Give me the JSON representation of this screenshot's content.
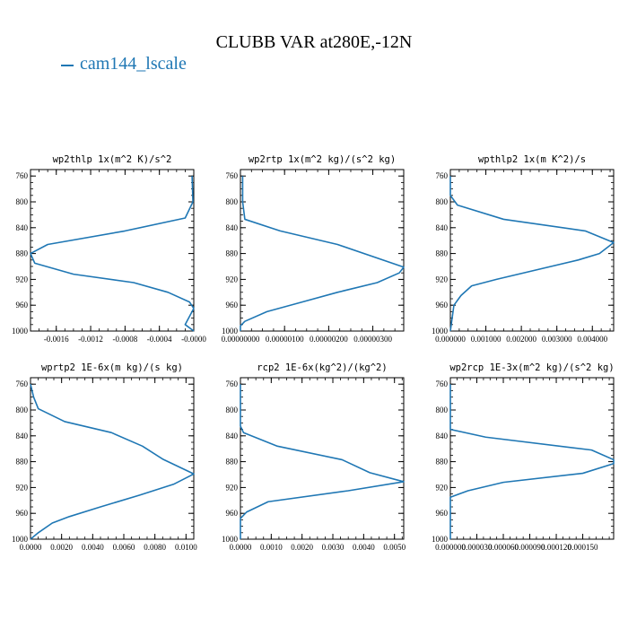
{
  "figure": {
    "title": "CLUBB VAR at280E,-12N",
    "legend": {
      "label": "cam144_lscale",
      "color": "#1f77b4"
    }
  },
  "chart_data": [
    {
      "type": "line",
      "title": "wp2thlp  1x(m^2 K)/s^2",
      "series_color": "#1f77b4",
      "xlim": [
        -0.0019,
        0.0
      ],
      "ylim": [
        1000,
        750
      ],
      "yticks": [
        760,
        800,
        840,
        880,
        920,
        960,
        1000
      ],
      "xticks": [
        -0.0016,
        -0.0012,
        -0.0008,
        -0.0004,
        -0.0
      ],
      "xtick_labels": [
        "-0.0016",
        "-0.0012",
        "-0.0008",
        "-0.0004",
        "-0.0000"
      ],
      "points": [
        [
          -2e-05,
          760
        ],
        [
          -1e-05,
          800
        ],
        [
          -0.0001,
          825
        ],
        [
          -0.0008,
          845
        ],
        [
          -0.0017,
          866
        ],
        [
          -0.0019,
          880
        ],
        [
          -0.00185,
          895
        ],
        [
          -0.0014,
          912
        ],
        [
          -0.0007,
          925
        ],
        [
          -0.0003,
          940
        ],
        [
          -5e-05,
          955
        ],
        [
          0.0,
          965
        ],
        [
          -0.0001,
          990
        ],
        [
          0.0,
          1000
        ]
      ]
    },
    {
      "type": "line",
      "title": "wp2rtp  1x(m^2 kg)/(s^2 kg)",
      "series_color": "#1f77b4",
      "xlim": [
        0.0,
        3.7e-06
      ],
      "ylim": [
        1000,
        750
      ],
      "yticks": [
        760,
        800,
        840,
        880,
        920,
        960,
        1000
      ],
      "xticks": [
        0.0,
        1e-06,
        2e-06,
        3e-06
      ],
      "xtick_labels": [
        "0.00000000",
        "0.00000100",
        "0.00000200",
        "0.00000300"
      ],
      "points": [
        [
          5e-08,
          760
        ],
        [
          5e-08,
          800
        ],
        [
          1e-07,
          827
        ],
        [
          9e-07,
          845
        ],
        [
          2.2e-06,
          866
        ],
        [
          3.7e-06,
          901
        ],
        [
          3.6e-06,
          910
        ],
        [
          3.1e-06,
          925
        ],
        [
          2.2e-06,
          940
        ],
        [
          1.4e-06,
          955
        ],
        [
          6e-07,
          970
        ],
        [
          1e-07,
          985
        ],
        [
          0.0,
          992
        ],
        [
          0.0,
          1000
        ]
      ]
    },
    {
      "type": "line",
      "title": "wpthlp2  1x(m K^2)/s",
      "series_color": "#1f77b4",
      "xlim": [
        0.0,
        0.0046
      ],
      "ylim": [
        1000,
        750
      ],
      "yticks": [
        760,
        800,
        840,
        880,
        920,
        960,
        1000
      ],
      "xticks": [
        0.0,
        0.001,
        0.002,
        0.003,
        0.004
      ],
      "xtick_labels": [
        "0.000000",
        "0.001000",
        "0.002000",
        "0.003000",
        "0.004000"
      ],
      "points": [
        [
          0.0,
          760
        ],
        [
          0.0,
          790
        ],
        [
          0.0002,
          805
        ],
        [
          0.0015,
          827
        ],
        [
          0.0038,
          845
        ],
        [
          0.0046,
          863
        ],
        [
          0.0042,
          880
        ],
        [
          0.0036,
          890
        ],
        [
          0.0013,
          920
        ],
        [
          0.0006,
          930
        ],
        [
          0.0003,
          945
        ],
        [
          0.0001,
          960
        ],
        [
          0.0,
          1000
        ]
      ]
    },
    {
      "type": "line",
      "title": "wprtp2  1E-6x(m kg)/(s kg)",
      "series_color": "#1f77b4",
      "xlim": [
        0.0,
        0.0105
      ],
      "ylim": [
        1000,
        750
      ],
      "yticks": [
        760,
        800,
        840,
        880,
        920,
        960,
        1000
      ],
      "xticks": [
        0.0,
        0.002,
        0.004,
        0.006,
        0.008,
        0.01
      ],
      "xtick_labels": [
        "0.0000",
        "0.0020",
        "0.0040",
        "0.0060",
        "0.0080",
        "0.0100"
      ],
      "points": [
        [
          0.0,
          760
        ],
        [
          0.0002,
          780
        ],
        [
          0.0005,
          798
        ],
        [
          0.0022,
          818
        ],
        [
          0.0052,
          835
        ],
        [
          0.0072,
          856
        ],
        [
          0.0085,
          876
        ],
        [
          0.0105,
          899
        ],
        [
          0.0092,
          915
        ],
        [
          0.007,
          932
        ],
        [
          0.0045,
          950
        ],
        [
          0.0025,
          965
        ],
        [
          0.0014,
          975
        ],
        [
          0.0005,
          990
        ],
        [
          0.0,
          1000
        ]
      ]
    },
    {
      "type": "line",
      "title": "rcp2  1E-6x(kg^2)/(kg^2)",
      "series_color": "#1f77b4",
      "xlim": [
        0.0,
        0.0053
      ],
      "ylim": [
        1000,
        750
      ],
      "yticks": [
        760,
        800,
        840,
        880,
        920,
        960,
        1000
      ],
      "xticks": [
        0.0,
        0.001,
        0.002,
        0.003,
        0.004,
        0.005
      ],
      "xtick_labels": [
        "0.0000",
        "0.0010",
        "0.0020",
        "0.0030",
        "0.0040",
        "0.0050"
      ],
      "points": [
        [
          0.0,
          760
        ],
        [
          0.0,
          825
        ],
        [
          0.0001,
          835
        ],
        [
          0.0012,
          856
        ],
        [
          0.0033,
          877
        ],
        [
          0.0042,
          897
        ],
        [
          0.0053,
          911
        ],
        [
          0.0035,
          925
        ],
        [
          0.0009,
          942
        ],
        [
          0.0002,
          958
        ],
        [
          0.0,
          968
        ],
        [
          0.0,
          1000
        ]
      ]
    },
    {
      "type": "line",
      "title": "wp2rcp  1E-3x(m^2 kg)/(s^2 kg)",
      "series_color": "#1f77b4",
      "xlim": [
        0.0,
        0.000185
      ],
      "ylim": [
        1000,
        750
      ],
      "yticks": [
        760,
        800,
        840,
        880,
        920,
        960,
        1000
      ],
      "xticks": [
        0.0,
        3e-05,
        6e-05,
        9e-05,
        0.00012,
        0.00015
      ],
      "xtick_labels": [
        "0.000000",
        "0.000030",
        "0.000060",
        "0.000090",
        "0.000120",
        "0.000150"
      ],
      "points": [
        [
          0.0,
          760
        ],
        [
          0.0,
          830
        ],
        [
          4e-05,
          842
        ],
        [
          0.00016,
          862
        ],
        [
          0.000185,
          877
        ],
        [
          0.000185,
          883
        ],
        [
          0.00015,
          898
        ],
        [
          6e-05,
          912
        ],
        [
          2e-05,
          925
        ],
        [
          0.0,
          935
        ],
        [
          0.0,
          1000
        ]
      ]
    }
  ]
}
